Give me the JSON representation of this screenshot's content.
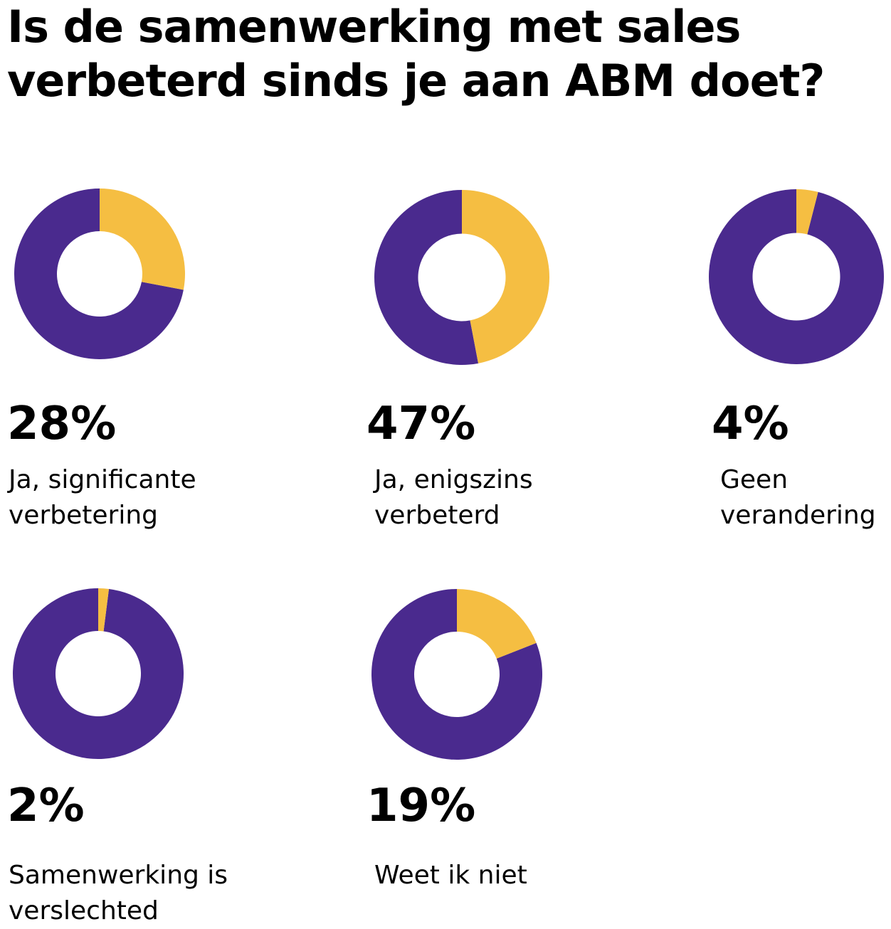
{
  "title": "Is de samenwerking met sales verbeterd sinds je aan ABM doet?",
  "colors": {
    "highlight": "#F5BE42",
    "remainder": "#4A2A8E",
    "background": "#FFFFFF"
  },
  "chart_data": [
    {
      "type": "pie",
      "value_label": "28%",
      "value": 28,
      "label": "Ja, significante verbetering"
    },
    {
      "type": "pie",
      "value_label": "47%",
      "value": 47,
      "label": "Ja, enigszins verbeterd"
    },
    {
      "type": "pie",
      "value_label": "4%",
      "value": 4,
      "label": "Geen verandering"
    },
    {
      "type": "pie",
      "value_label": "2%",
      "value": 2,
      "label": "Samenwerking is verslechted"
    },
    {
      "type": "pie",
      "value_label": "19%",
      "value": 19,
      "label": "Weet ik niet"
    }
  ]
}
